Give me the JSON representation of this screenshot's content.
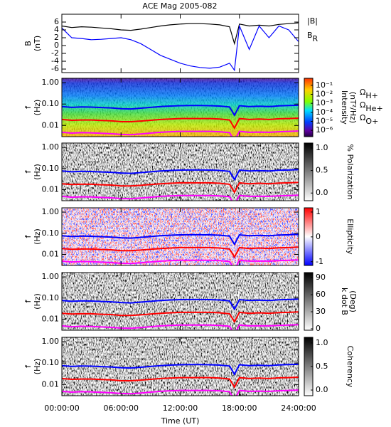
{
  "chart_data": [
    {
      "type": "line",
      "title": "ACE Mag 2005-082",
      "ylabel": "B",
      "ylabel_unit": "(nT)",
      "x": [
        0,
        1,
        2,
        3,
        4,
        5,
        6,
        7,
        8,
        9,
        10,
        11,
        12,
        13,
        14,
        15,
        16,
        17,
        17.5,
        18,
        19,
        20,
        21,
        22,
        23,
        24
      ],
      "xlim": [
        0,
        24
      ],
      "xticks": [
        0,
        6,
        12,
        18,
        24
      ],
      "ylim": [
        -6.9,
        8
      ],
      "yticks": [
        -6,
        -4,
        -2,
        0,
        2,
        4,
        6
      ],
      "series": [
        {
          "name": "|B|",
          "color": "#000000",
          "values": [
            5.0,
            4.6,
            4.8,
            4.7,
            4.5,
            4.3,
            4.0,
            3.9,
            4.2,
            4.6,
            5.0,
            5.3,
            5.5,
            5.6,
            5.6,
            5.5,
            5.3,
            4.8,
            0.5,
            5.5,
            5.0,
            5.2,
            5.0,
            5.4,
            5.6,
            5.8
          ]
        },
        {
          "name": "B",
          "name_sub": "R",
          "color": "#0000ff",
          "values": [
            4.5,
            2.0,
            1.8,
            1.5,
            1.6,
            1.8,
            2.0,
            1.5,
            0.5,
            -1.0,
            -2.5,
            -3.5,
            -4.5,
            -5.2,
            -5.6,
            -5.8,
            -5.5,
            -4.5,
            -6.3,
            5.0,
            -1.0,
            5.0,
            2.0,
            5.0,
            4.0,
            1.0
          ]
        }
      ]
    },
    {
      "type": "spectrogram",
      "colormap": "rainbow",
      "ylabel": "f",
      "ylabel_unit": "(Hz)",
      "ylog": true,
      "x": [
        0,
        1,
        2,
        3,
        4,
        5,
        6,
        7,
        8,
        9,
        10,
        11,
        12,
        13,
        14,
        15,
        16,
        17,
        17.5,
        18,
        19,
        20,
        21,
        22,
        23,
        24
      ],
      "xlim": [
        0,
        24
      ],
      "xticks": [
        0,
        6,
        12,
        18,
        24
      ],
      "ylim": [
        0.003,
        1.6
      ],
      "yticks": [
        {
          "value": 1,
          "label": "1.00"
        },
        {
          "value": 0.1,
          "label": "0.10"
        },
        {
          "value": 0.01,
          "label": "0.01"
        }
      ],
      "clabel": "Intensity",
      "clabel_unit": "(nT²/Hz)",
      "clog": true,
      "clim": [
        2e-07,
        0.6
      ],
      "cticks": [
        {
          "value": 0.1,
          "label": "10⁻¹"
        },
        {
          "value": 0.01,
          "label": "10⁻²"
        },
        {
          "value": 0.001,
          "label": "10⁻³"
        },
        {
          "value": 0.0001,
          "label": "10⁻⁴"
        },
        {
          "value": 1e-05,
          "label": "10⁻⁵"
        },
        {
          "value": 1e-06,
          "label": "10⁻⁶"
        }
      ],
      "series": [
        {
          "name": "Ω",
          "name_sub": "H+",
          "color": "#0000ff",
          "values": [
            0.076,
            0.07,
            0.073,
            0.072,
            0.069,
            0.066,
            0.061,
            0.059,
            0.064,
            0.07,
            0.076,
            0.081,
            0.084,
            0.085,
            0.085,
            0.084,
            0.081,
            0.073,
            0.03,
            0.084,
            0.076,
            0.079,
            0.076,
            0.082,
            0.085,
            0.088
          ]
        },
        {
          "name": "Ω",
          "name_sub": "He+",
          "color": "#ff0000",
          "values": [
            0.019,
            0.0175,
            0.018,
            0.018,
            0.017,
            0.0165,
            0.015,
            0.015,
            0.016,
            0.0175,
            0.019,
            0.02,
            0.021,
            0.021,
            0.021,
            0.021,
            0.02,
            0.018,
            0.0075,
            0.021,
            0.019,
            0.02,
            0.019,
            0.0205,
            0.021,
            0.022
          ]
        },
        {
          "name": "Ω",
          "name_sub": "O+",
          "color": "#ff00ff",
          "values": [
            0.0048,
            0.0044,
            0.0046,
            0.0045,
            0.0043,
            0.0041,
            0.0038,
            0.0037,
            0.004,
            0.0044,
            0.0048,
            0.0051,
            0.0053,
            0.0053,
            0.0053,
            0.0053,
            0.0051,
            0.0046,
            0.0019,
            0.0053,
            0.0048,
            0.0049,
            0.0048,
            0.0051,
            0.0053,
            0.0055
          ]
        }
      ]
    },
    {
      "type": "spectrogram",
      "colormap": "gray",
      "ylabel": "f",
      "ylabel_unit": "(Hz)",
      "ylog": true,
      "x": [
        0,
        1,
        2,
        3,
        4,
        5,
        6,
        7,
        8,
        9,
        10,
        11,
        12,
        13,
        14,
        15,
        16,
        17,
        17.5,
        18,
        19,
        20,
        21,
        22,
        23,
        24
      ],
      "xlim": [
        0,
        24
      ],
      "xticks": [
        0,
        6,
        12,
        18,
        24
      ],
      "ylim": [
        0.003,
        1.6
      ],
      "yticks": [
        {
          "value": 1,
          "label": "1.00"
        },
        {
          "value": 0.1,
          "label": "0.10"
        },
        {
          "value": 0.01,
          "label": "0.01"
        }
      ],
      "clabel": "% Polarization",
      "clim": [
        -0.17,
        1.11
      ],
      "cticks": [
        {
          "value": 0,
          "label": "0.0"
        },
        {
          "value": 0.5,
          "label": "0.5"
        },
        {
          "value": 1,
          "label": "1.0"
        }
      ],
      "series": [
        {
          "color": "#0000ff",
          "values": [
            0.076,
            0.07,
            0.073,
            0.072,
            0.069,
            0.066,
            0.061,
            0.059,
            0.064,
            0.07,
            0.076,
            0.081,
            0.084,
            0.085,
            0.085,
            0.084,
            0.081,
            0.073,
            0.03,
            0.084,
            0.076,
            0.079,
            0.076,
            0.082,
            0.085,
            0.088
          ]
        },
        {
          "color": "#ff0000",
          "values": [
            0.019,
            0.0175,
            0.018,
            0.018,
            0.017,
            0.0165,
            0.015,
            0.015,
            0.016,
            0.0175,
            0.019,
            0.02,
            0.021,
            0.021,
            0.021,
            0.021,
            0.02,
            0.018,
            0.0075,
            0.021,
            0.019,
            0.02,
            0.019,
            0.0205,
            0.021,
            0.022
          ]
        },
        {
          "color": "#ff00ff",
          "values": [
            0.0048,
            0.0044,
            0.0046,
            0.0045,
            0.0043,
            0.0041,
            0.0038,
            0.0037,
            0.004,
            0.0044,
            0.0048,
            0.0051,
            0.0053,
            0.0053,
            0.0053,
            0.0053,
            0.0051,
            0.0046,
            0.0019,
            0.0053,
            0.0048,
            0.0049,
            0.0048,
            0.0051,
            0.0053,
            0.0055
          ]
        }
      ]
    },
    {
      "type": "spectrogram",
      "colormap": "bwr",
      "ylabel": "f",
      "ylabel_unit": "(Hz)",
      "ylog": true,
      "x": [
        0,
        1,
        2,
        3,
        4,
        5,
        6,
        7,
        8,
        9,
        10,
        11,
        12,
        13,
        14,
        15,
        16,
        17,
        17.5,
        18,
        19,
        20,
        21,
        22,
        23,
        24
      ],
      "xlim": [
        0,
        24
      ],
      "xticks": [
        0,
        6,
        12,
        18,
        24
      ],
      "ylim": [
        0.003,
        1.6
      ],
      "yticks": [
        {
          "value": 1,
          "label": "1.00"
        },
        {
          "value": 0.1,
          "label": "0.10"
        },
        {
          "value": 0.01,
          "label": "0.01"
        }
      ],
      "clabel": "Ellipticity",
      "clim": [
        -1.15,
        1.17
      ],
      "cticks": [
        -1,
        0,
        1
      ],
      "series": [
        {
          "color": "#0000ff",
          "values": [
            0.076,
            0.07,
            0.073,
            0.072,
            0.069,
            0.066,
            0.061,
            0.059,
            0.064,
            0.07,
            0.076,
            0.081,
            0.084,
            0.085,
            0.085,
            0.084,
            0.081,
            0.073,
            0.03,
            0.084,
            0.076,
            0.079,
            0.076,
            0.082,
            0.085,
            0.088
          ]
        },
        {
          "color": "#ff0000",
          "values": [
            0.019,
            0.0175,
            0.018,
            0.018,
            0.017,
            0.0165,
            0.015,
            0.015,
            0.016,
            0.0175,
            0.019,
            0.02,
            0.021,
            0.021,
            0.021,
            0.021,
            0.02,
            0.018,
            0.0075,
            0.021,
            0.019,
            0.02,
            0.019,
            0.0205,
            0.021,
            0.022
          ]
        },
        {
          "color": "#ff00ff",
          "values": [
            0.0048,
            0.0044,
            0.0046,
            0.0045,
            0.0043,
            0.0041,
            0.0038,
            0.0037,
            0.004,
            0.0044,
            0.0048,
            0.0051,
            0.0053,
            0.0053,
            0.0053,
            0.0053,
            0.0051,
            0.0046,
            0.0019,
            0.0053,
            0.0048,
            0.0049,
            0.0048,
            0.0051,
            0.0053,
            0.0055
          ]
        }
      ]
    },
    {
      "type": "spectrogram",
      "colormap": "gray",
      "ylabel": "f",
      "ylabel_unit": "(Hz)",
      "ylog": true,
      "x": [
        0,
        1,
        2,
        3,
        4,
        5,
        6,
        7,
        8,
        9,
        10,
        11,
        12,
        13,
        14,
        15,
        16,
        17,
        17.5,
        18,
        19,
        20,
        21,
        22,
        23,
        24
      ],
      "xlim": [
        0,
        24
      ],
      "xticks": [
        0,
        6,
        12,
        18,
        24
      ],
      "ylim": [
        0.003,
        1.6
      ],
      "yticks": [
        {
          "value": 1,
          "label": "1.00"
        },
        {
          "value": 0.1,
          "label": "0.10"
        },
        {
          "value": 0.01,
          "label": "0.01"
        }
      ],
      "clabel": "k dot B",
      "clabel_unit": "(Deg)",
      "clim": [
        -2.5,
        99
      ],
      "cticks": [
        0,
        30,
        60,
        90
      ],
      "series": [
        {
          "color": "#0000ff",
          "values": [
            0.076,
            0.07,
            0.073,
            0.072,
            0.069,
            0.066,
            0.061,
            0.059,
            0.064,
            0.07,
            0.076,
            0.081,
            0.084,
            0.085,
            0.085,
            0.084,
            0.081,
            0.073,
            0.03,
            0.084,
            0.076,
            0.079,
            0.076,
            0.082,
            0.085,
            0.088
          ]
        },
        {
          "color": "#ff0000",
          "values": [
            0.019,
            0.0175,
            0.018,
            0.018,
            0.017,
            0.0165,
            0.015,
            0.015,
            0.016,
            0.0175,
            0.019,
            0.02,
            0.021,
            0.021,
            0.021,
            0.021,
            0.02,
            0.018,
            0.0075,
            0.021,
            0.019,
            0.02,
            0.019,
            0.0205,
            0.021,
            0.022
          ]
        },
        {
          "color": "#ff00ff",
          "values": [
            0.0048,
            0.0044,
            0.0046,
            0.0045,
            0.0043,
            0.0041,
            0.0038,
            0.0037,
            0.004,
            0.0044,
            0.0048,
            0.0051,
            0.0053,
            0.0053,
            0.0053,
            0.0053,
            0.0051,
            0.0046,
            0.0019,
            0.0053,
            0.0048,
            0.0049,
            0.0048,
            0.0051,
            0.0053,
            0.0055
          ]
        }
      ]
    },
    {
      "type": "spectrogram",
      "colormap": "gray",
      "ylabel": "f",
      "ylabel_unit": "(Hz)",
      "ylog": true,
      "x": [
        0,
        1,
        2,
        3,
        4,
        5,
        6,
        7,
        8,
        9,
        10,
        11,
        12,
        13,
        14,
        15,
        16,
        17,
        17.5,
        18,
        19,
        20,
        21,
        22,
        23,
        24
      ],
      "xlim": [
        0,
        24
      ],
      "xlabel": "Time (UT)",
      "xticks": [
        {
          "value": 0,
          "label": "00:00:00"
        },
        {
          "value": 6,
          "label": "06:00:00"
        },
        {
          "value": 12,
          "label": "12:00:00"
        },
        {
          "value": 18,
          "label": "18:00:00"
        },
        {
          "value": 24,
          "label": "24:00:00"
        }
      ],
      "ylim": [
        0.003,
        1.6
      ],
      "yticks": [
        {
          "value": 1,
          "label": "1.00"
        },
        {
          "value": 0.1,
          "label": "0.10"
        },
        {
          "value": 0.01,
          "label": "0.01"
        }
      ],
      "clabel": "Coherency",
      "clim": [
        -0.12,
        1.12
      ],
      "cticks": [
        {
          "value": 0,
          "label": "0.0"
        },
        {
          "value": 0.5,
          "label": "0.5"
        },
        {
          "value": 1,
          "label": "1.0"
        }
      ],
      "series": [
        {
          "color": "#0000ff",
          "values": [
            0.076,
            0.07,
            0.073,
            0.072,
            0.069,
            0.066,
            0.061,
            0.059,
            0.064,
            0.07,
            0.076,
            0.081,
            0.084,
            0.085,
            0.085,
            0.084,
            0.081,
            0.073,
            0.03,
            0.084,
            0.076,
            0.079,
            0.076,
            0.082,
            0.085,
            0.088
          ]
        },
        {
          "color": "#ff0000",
          "values": [
            0.019,
            0.0175,
            0.018,
            0.018,
            0.017,
            0.0165,
            0.015,
            0.015,
            0.016,
            0.0175,
            0.019,
            0.02,
            0.021,
            0.021,
            0.021,
            0.021,
            0.02,
            0.018,
            0.0075,
            0.021,
            0.019,
            0.02,
            0.019,
            0.0205,
            0.021,
            0.022
          ]
        },
        {
          "color": "#ff00ff",
          "values": [
            0.0048,
            0.0044,
            0.0046,
            0.0045,
            0.0043,
            0.0041,
            0.0038,
            0.0037,
            0.004,
            0.0044,
            0.0048,
            0.0051,
            0.0053,
            0.0053,
            0.0053,
            0.0053,
            0.0051,
            0.0046,
            0.0019,
            0.0053,
            0.0048,
            0.0049,
            0.0048,
            0.0051,
            0.0053,
            0.0055
          ]
        }
      ]
    }
  ]
}
